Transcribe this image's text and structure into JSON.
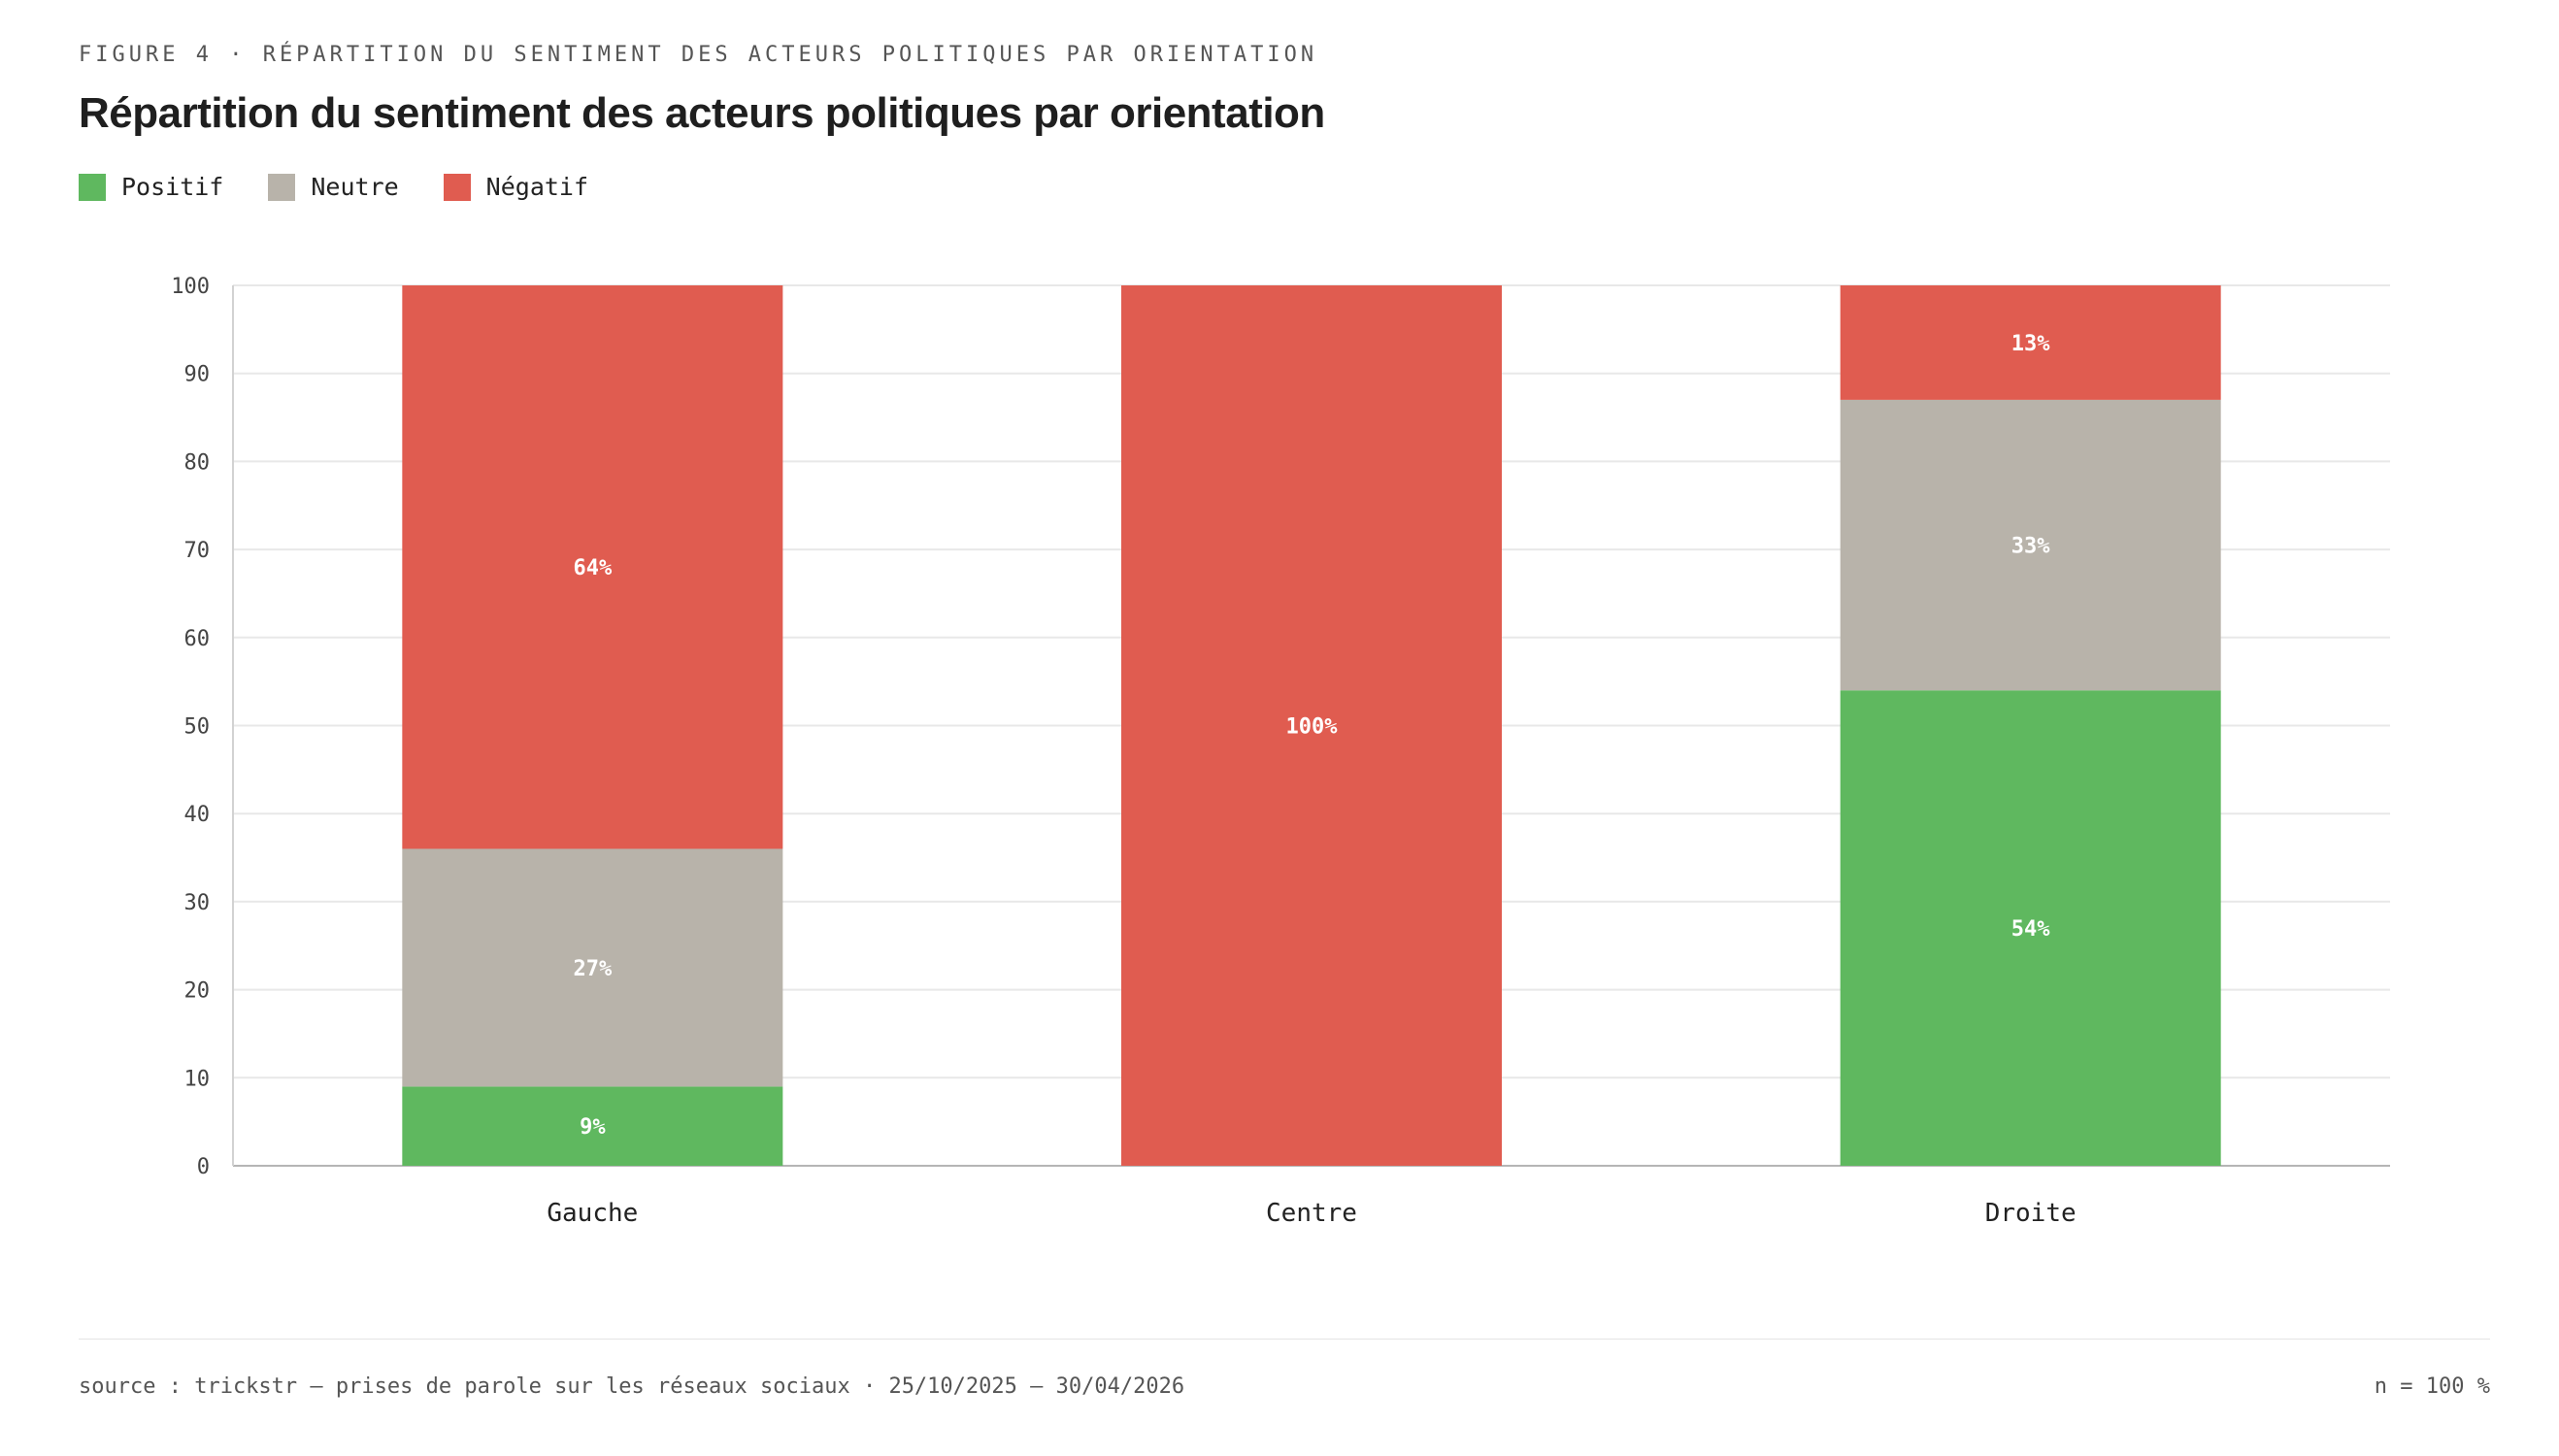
{
  "header": {
    "kicker": "FIGURE 4 · RÉPARTITION DU SENTIMENT DES ACTEURS POLITIQUES PAR ORIENTATION"
  },
  "footer": {
    "source": "source : trickstr — prises de parole sur les réseaux sociaux · 25/10/2025 — 30/04/2026",
    "n_note": "n = 100 %"
  },
  "chart_data": {
    "type": "bar",
    "stacked": true,
    "title": "Répartition du sentiment des acteurs politiques par orientation",
    "xlabel": "",
    "ylabel": "",
    "ylim": [
      0,
      100
    ],
    "yticks": [
      0,
      10,
      20,
      30,
      40,
      50,
      60,
      70,
      80,
      90,
      100
    ],
    "grid": true,
    "legend_position": "top-left",
    "categories": [
      "Gauche",
      "Centre",
      "Droite"
    ],
    "series": [
      {
        "name": "Positif",
        "color": "#5fb85f",
        "values": [
          9,
          0,
          54
        ],
        "labels": [
          "9%",
          "",
          "54%"
        ]
      },
      {
        "name": "Neutre",
        "color": "#b8b3aa",
        "values": [
          27,
          0,
          33
        ],
        "labels": [
          "27%",
          "",
          "33%"
        ]
      },
      {
        "name": "Négatif",
        "color": "#e05c50",
        "values": [
          64,
          100,
          13
        ],
        "labels": [
          "64%",
          "100%",
          "13%"
        ]
      }
    ]
  }
}
